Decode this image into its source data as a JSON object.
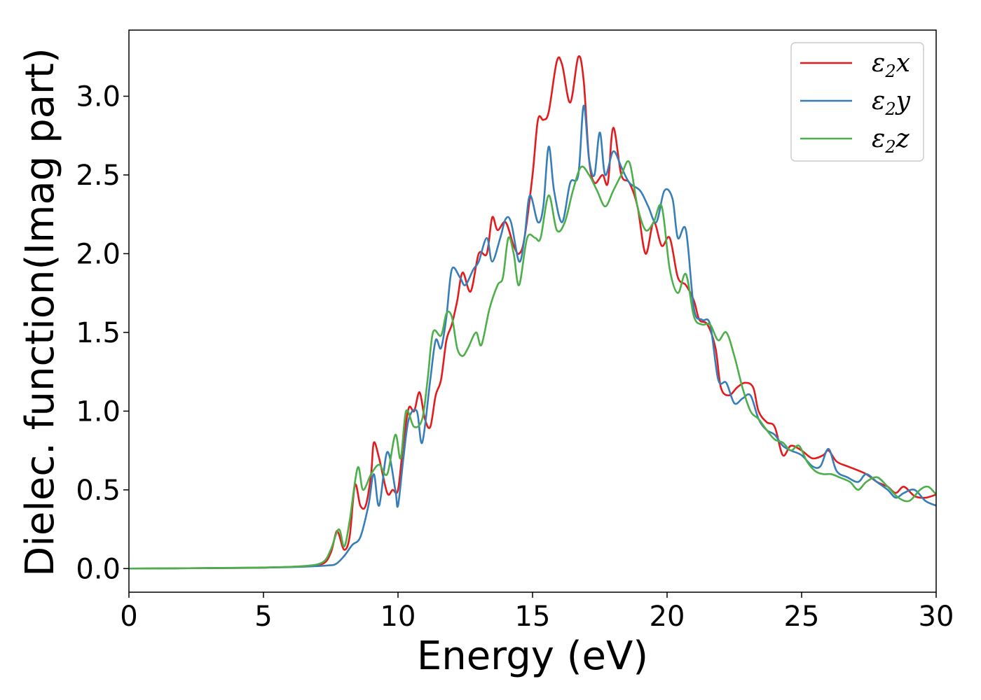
{
  "chart_data": {
    "type": "line",
    "xlabel": "Energy (eV)",
    "ylabel": "Dielec. function(Imag part)",
    "xlim": [
      0,
      30
    ],
    "ylim": [
      -0.15,
      3.42
    ],
    "xticks": [
      0,
      5,
      10,
      15,
      20,
      25,
      30
    ],
    "yticks": [
      0.0,
      0.5,
      1.0,
      1.5,
      2.0,
      2.5,
      3.0
    ],
    "xtick_labels": [
      "0",
      "5",
      "10",
      "15",
      "20",
      "25",
      "30"
    ],
    "ytick_labels": [
      "0.0",
      "0.5",
      "1.0",
      "1.5",
      "2.0",
      "2.5",
      "3.0"
    ],
    "grid": false,
    "legend_position": "top-right",
    "series": [
      {
        "name": "ε2x",
        "legend": {
          "base": "ε",
          "sub": "2",
          "suffix": "x"
        },
        "color": "#e41a1c",
        "points": [
          [
            0,
            0
          ],
          [
            3,
            0.003
          ],
          [
            5,
            0.006
          ],
          [
            6.5,
            0.015
          ],
          [
            7.2,
            0.03
          ],
          [
            7.5,
            0.1
          ],
          [
            7.7,
            0.23
          ],
          [
            7.8,
            0.22
          ],
          [
            8.0,
            0.12
          ],
          [
            8.2,
            0.2
          ],
          [
            8.4,
            0.53
          ],
          [
            8.6,
            0.4
          ],
          [
            8.8,
            0.4
          ],
          [
            9.0,
            0.6
          ],
          [
            9.1,
            0.8
          ],
          [
            9.3,
            0.7
          ],
          [
            9.6,
            0.48
          ],
          [
            9.8,
            0.5
          ],
          [
            10.0,
            0.5
          ],
          [
            10.2,
            0.8
          ],
          [
            10.4,
            1.02
          ],
          [
            10.6,
            1.0
          ],
          [
            10.8,
            1.12
          ],
          [
            11.0,
            0.95
          ],
          [
            11.2,
            0.9
          ],
          [
            11.4,
            1.1
          ],
          [
            11.6,
            1.2
          ],
          [
            11.8,
            1.45
          ],
          [
            12.0,
            1.55
          ],
          [
            12.2,
            1.7
          ],
          [
            12.4,
            1.88
          ],
          [
            12.7,
            1.76
          ],
          [
            13.0,
            2.0
          ],
          [
            13.3,
            2.0
          ],
          [
            13.5,
            2.23
          ],
          [
            13.7,
            2.15
          ],
          [
            14.0,
            2.2
          ],
          [
            14.3,
            2.05
          ],
          [
            14.5,
            2.0
          ],
          [
            14.7,
            2.1
          ],
          [
            15.0,
            2.5
          ],
          [
            15.2,
            2.85
          ],
          [
            15.4,
            2.85
          ],
          [
            15.6,
            2.9
          ],
          [
            15.9,
            3.22
          ],
          [
            16.1,
            3.2
          ],
          [
            16.4,
            2.96
          ],
          [
            16.7,
            3.25
          ],
          [
            16.9,
            3.1
          ],
          [
            17.1,
            2.6
          ],
          [
            17.3,
            2.45
          ],
          [
            17.6,
            2.5
          ],
          [
            17.8,
            2.45
          ],
          [
            18.0,
            2.8
          ],
          [
            18.3,
            2.5
          ],
          [
            18.6,
            2.45
          ],
          [
            18.9,
            2.3
          ],
          [
            19.2,
            2.0
          ],
          [
            19.5,
            2.2
          ],
          [
            19.8,
            2.05
          ],
          [
            20.1,
            2.1
          ],
          [
            20.4,
            1.85
          ],
          [
            20.7,
            1.8
          ],
          [
            21.0,
            1.7
          ],
          [
            21.2,
            1.58
          ],
          [
            21.5,
            1.55
          ],
          [
            21.8,
            1.4
          ],
          [
            22.0,
            1.15
          ],
          [
            22.3,
            1.1
          ],
          [
            22.6,
            1.15
          ],
          [
            22.9,
            1.18
          ],
          [
            23.2,
            1.15
          ],
          [
            23.4,
            1.0
          ],
          [
            23.7,
            0.93
          ],
          [
            24.0,
            0.9
          ],
          [
            24.3,
            0.72
          ],
          [
            24.6,
            0.78
          ],
          [
            25.0,
            0.75
          ],
          [
            25.4,
            0.7
          ],
          [
            25.8,
            0.72
          ],
          [
            26.0,
            0.75
          ],
          [
            26.3,
            0.68
          ],
          [
            26.7,
            0.65
          ],
          [
            27.0,
            0.63
          ],
          [
            27.4,
            0.6
          ],
          [
            27.8,
            0.55
          ],
          [
            28.2,
            0.52
          ],
          [
            28.5,
            0.48
          ],
          [
            28.8,
            0.52
          ],
          [
            29.2,
            0.46
          ],
          [
            29.6,
            0.45
          ],
          [
            30.0,
            0.47
          ]
        ]
      },
      {
        "name": "ε2y",
        "legend": {
          "base": "ε",
          "sub": "2",
          "suffix": "y"
        },
        "color": "#377eb8",
        "points": [
          [
            0,
            0
          ],
          [
            3,
            0.003
          ],
          [
            5,
            0.006
          ],
          [
            6.5,
            0.012
          ],
          [
            7.4,
            0.02
          ],
          [
            7.7,
            0.03
          ],
          [
            8.0,
            0.08
          ],
          [
            8.3,
            0.15
          ],
          [
            8.6,
            0.2
          ],
          [
            8.9,
            0.4
          ],
          [
            9.1,
            0.6
          ],
          [
            9.3,
            0.4
          ],
          [
            9.6,
            0.74
          ],
          [
            9.9,
            0.5
          ],
          [
            10.0,
            0.4
          ],
          [
            10.2,
            0.7
          ],
          [
            10.4,
            0.95
          ],
          [
            10.7,
            1.0
          ],
          [
            10.9,
            0.8
          ],
          [
            11.2,
            1.2
          ],
          [
            11.4,
            1.45
          ],
          [
            11.6,
            1.4
          ],
          [
            11.8,
            1.6
          ],
          [
            12.0,
            1.9
          ],
          [
            12.3,
            1.85
          ],
          [
            12.5,
            1.8
          ],
          [
            12.8,
            1.9
          ],
          [
            13.0,
            1.95
          ],
          [
            13.3,
            2.1
          ],
          [
            13.5,
            1.95
          ],
          [
            13.8,
            2.1
          ],
          [
            14.0,
            2.22
          ],
          [
            14.2,
            2.2
          ],
          [
            14.5,
            1.95
          ],
          [
            14.7,
            2.1
          ],
          [
            14.9,
            2.37
          ],
          [
            15.2,
            2.2
          ],
          [
            15.4,
            2.3
          ],
          [
            15.6,
            2.68
          ],
          [
            15.8,
            2.4
          ],
          [
            16.1,
            2.2
          ],
          [
            16.4,
            2.45
          ],
          [
            16.7,
            2.5
          ],
          [
            16.9,
            2.94
          ],
          [
            17.1,
            2.6
          ],
          [
            17.3,
            2.5
          ],
          [
            17.5,
            2.77
          ],
          [
            17.7,
            2.5
          ],
          [
            18.0,
            2.65
          ],
          [
            18.3,
            2.55
          ],
          [
            18.6,
            2.45
          ],
          [
            19.0,
            2.4
          ],
          [
            19.3,
            2.3
          ],
          [
            19.6,
            2.2
          ],
          [
            19.9,
            2.4
          ],
          [
            20.2,
            2.35
          ],
          [
            20.4,
            2.1
          ],
          [
            20.7,
            2.15
          ],
          [
            21.0,
            1.65
          ],
          [
            21.3,
            1.58
          ],
          [
            21.6,
            1.55
          ],
          [
            21.9,
            1.2
          ],
          [
            22.2,
            1.18
          ],
          [
            22.5,
            1.05
          ],
          [
            22.8,
            1.08
          ],
          [
            23.1,
            1.1
          ],
          [
            23.4,
            0.95
          ],
          [
            23.7,
            0.88
          ],
          [
            24.0,
            0.85
          ],
          [
            24.3,
            0.78
          ],
          [
            24.6,
            0.75
          ],
          [
            25.0,
            0.72
          ],
          [
            25.4,
            0.65
          ],
          [
            25.7,
            0.65
          ],
          [
            26.0,
            0.76
          ],
          [
            26.3,
            0.62
          ],
          [
            26.7,
            0.58
          ],
          [
            27.1,
            0.55
          ],
          [
            27.4,
            0.6
          ],
          [
            27.8,
            0.55
          ],
          [
            28.2,
            0.5
          ],
          [
            28.5,
            0.45
          ],
          [
            28.8,
            0.48
          ],
          [
            29.2,
            0.5
          ],
          [
            29.6,
            0.43
          ],
          [
            30.0,
            0.4
          ]
        ]
      },
      {
        "name": "ε2z",
        "legend": {
          "base": "ε",
          "sub": "2",
          "suffix": "z"
        },
        "color": "#4daf4a",
        "points": [
          [
            0,
            0
          ],
          [
            3,
            0.003
          ],
          [
            5,
            0.007
          ],
          [
            6.5,
            0.016
          ],
          [
            7.2,
            0.04
          ],
          [
            7.5,
            0.12
          ],
          [
            7.8,
            0.25
          ],
          [
            8.0,
            0.14
          ],
          [
            8.2,
            0.3
          ],
          [
            8.5,
            0.64
          ],
          [
            8.7,
            0.5
          ],
          [
            9.0,
            0.6
          ],
          [
            9.3,
            0.66
          ],
          [
            9.6,
            0.6
          ],
          [
            9.9,
            0.85
          ],
          [
            10.1,
            0.7
          ],
          [
            10.3,
            1.0
          ],
          [
            10.6,
            0.9
          ],
          [
            10.9,
            0.95
          ],
          [
            11.1,
            1.2
          ],
          [
            11.3,
            1.5
          ],
          [
            11.6,
            1.48
          ],
          [
            11.8,
            1.62
          ],
          [
            12.0,
            1.6
          ],
          [
            12.2,
            1.4
          ],
          [
            12.4,
            1.35
          ],
          [
            12.6,
            1.4
          ],
          [
            12.9,
            1.5
          ],
          [
            13.1,
            1.42
          ],
          [
            13.4,
            1.65
          ],
          [
            13.7,
            1.8
          ],
          [
            13.9,
            1.85
          ],
          [
            14.1,
            2.1
          ],
          [
            14.3,
            2.0
          ],
          [
            14.5,
            1.8
          ],
          [
            14.8,
            2.1
          ],
          [
            15.1,
            2.1
          ],
          [
            15.3,
            2.1
          ],
          [
            15.6,
            2.37
          ],
          [
            15.9,
            2.15
          ],
          [
            16.2,
            2.2
          ],
          [
            16.5,
            2.4
          ],
          [
            16.8,
            2.55
          ],
          [
            17.1,
            2.5
          ],
          [
            17.4,
            2.4
          ],
          [
            17.7,
            2.3
          ],
          [
            18.0,
            2.4
          ],
          [
            18.3,
            2.5
          ],
          [
            18.6,
            2.58
          ],
          [
            18.9,
            2.3
          ],
          [
            19.2,
            2.15
          ],
          [
            19.5,
            2.2
          ],
          [
            19.8,
            2.3
          ],
          [
            20.1,
            1.9
          ],
          [
            20.4,
            1.75
          ],
          [
            20.7,
            1.87
          ],
          [
            21.0,
            1.6
          ],
          [
            21.3,
            1.55
          ],
          [
            21.6,
            1.55
          ],
          [
            21.9,
            1.45
          ],
          [
            22.2,
            1.5
          ],
          [
            22.5,
            1.35
          ],
          [
            22.8,
            1.15
          ],
          [
            23.1,
            1.0
          ],
          [
            23.4,
            0.95
          ],
          [
            23.7,
            0.88
          ],
          [
            24.0,
            0.82
          ],
          [
            24.3,
            0.8
          ],
          [
            24.6,
            0.75
          ],
          [
            24.9,
            0.78
          ],
          [
            25.2,
            0.68
          ],
          [
            25.5,
            0.62
          ],
          [
            25.8,
            0.6
          ],
          [
            26.1,
            0.6
          ],
          [
            26.4,
            0.58
          ],
          [
            26.8,
            0.55
          ],
          [
            27.1,
            0.5
          ],
          [
            27.4,
            0.55
          ],
          [
            27.8,
            0.58
          ],
          [
            28.2,
            0.52
          ],
          [
            28.6,
            0.45
          ],
          [
            29.0,
            0.43
          ],
          [
            29.4,
            0.5
          ],
          [
            29.7,
            0.52
          ],
          [
            30.0,
            0.47
          ]
        ]
      }
    ]
  }
}
